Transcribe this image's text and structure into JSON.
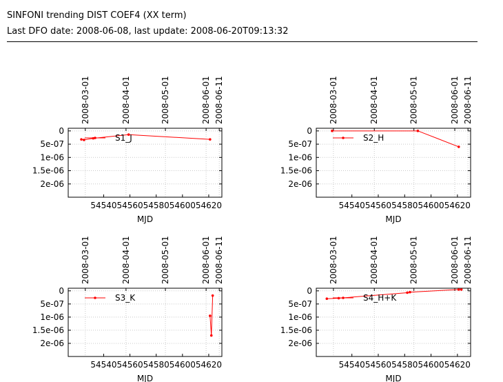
{
  "header": {
    "title": "SINFONI trending DIST COEF4 (XX term)",
    "subtitle": "Last DFO date: 2008-06-08, last update: 2008-06-20T09:13:32"
  },
  "colors": {
    "series": "#ff0000",
    "grid": "#c8c8c8",
    "axis": "#000000"
  },
  "chart_data": [
    {
      "type": "line",
      "series": [
        {
          "name": "S1_J",
          "x": [
            54523,
            54525,
            54532,
            54559,
            54621
          ],
          "y": [
            -3.2e-07,
            -3.4e-07,
            -2.8e-07,
            -1.4e-07,
            -3.2e-07
          ]
        }
      ],
      "xlabel": "MJD",
      "x_ticks": [
        {
          "value": 54540,
          "label": "54540"
        },
        {
          "value": 54560,
          "label": "54560"
        },
        {
          "value": 54580,
          "label": "54580"
        },
        {
          "value": 54600,
          "label": "54600"
        },
        {
          "value": 54620,
          "label": "54620"
        }
      ],
      "top_ticks": [
        {
          "value": 54526,
          "label": "2008-03-01"
        },
        {
          "value": 54557,
          "label": "2008-04-01"
        },
        {
          "value": 54587,
          "label": "2008-05-01"
        },
        {
          "value": 54618,
          "label": "2008-06-01"
        },
        {
          "value": 54628,
          "label": "2008-06-11"
        }
      ],
      "y_ticks": [
        {
          "value": 0,
          "label": "0"
        },
        {
          "value": -5e-07,
          "label": "5e-07"
        },
        {
          "value": -1e-06,
          "label": "1e-06"
        },
        {
          "value": -1.5e-06,
          "label": "1.5e-06"
        },
        {
          "value": -2e-06,
          "label": "2e-06"
        }
      ],
      "xlim": [
        54513,
        54630
      ],
      "ylim": [
        -2.5e-06,
        1e-07
      ],
      "grid": true,
      "legend": "top"
    },
    {
      "type": "line",
      "series": [
        {
          "name": "S2_H",
          "x": [
            54525,
            54590,
            54621
          ],
          "y": [
            0,
            0,
            -6e-07
          ]
        }
      ],
      "xlabel": "MJD",
      "x_ticks": [
        {
          "value": 54540,
          "label": "54540"
        },
        {
          "value": 54560,
          "label": "54560"
        },
        {
          "value": 54580,
          "label": "54580"
        },
        {
          "value": 54600,
          "label": "54600"
        },
        {
          "value": 54620,
          "label": "54620"
        }
      ],
      "top_ticks": [
        {
          "value": 54526,
          "label": "2008-03-01"
        },
        {
          "value": 54557,
          "label": "2008-04-01"
        },
        {
          "value": 54587,
          "label": "2008-05-01"
        },
        {
          "value": 54618,
          "label": "2008-06-01"
        },
        {
          "value": 54628,
          "label": "2008-06-11"
        }
      ],
      "y_ticks": [
        {
          "value": 0,
          "label": "0"
        },
        {
          "value": -5e-07,
          "label": "5e-07"
        },
        {
          "value": -1e-06,
          "label": "1e-06"
        },
        {
          "value": -1.5e-06,
          "label": "1.5e-06"
        },
        {
          "value": -2e-06,
          "label": "2e-06"
        }
      ],
      "xlim": [
        54513,
        54630
      ],
      "ylim": [
        -2.5e-06,
        1e-07
      ],
      "grid": true,
      "legend": "top"
    },
    {
      "type": "line",
      "series": [
        {
          "name": "S3_K",
          "x": [
            54621,
            54622,
            54623
          ],
          "y": [
            -9.5e-07,
            -1.7e-06,
            -1.8e-07
          ]
        }
      ],
      "xlabel": "MJD",
      "x_ticks": [
        {
          "value": 54540,
          "label": "54540"
        },
        {
          "value": 54560,
          "label": "54560"
        },
        {
          "value": 54580,
          "label": "54580"
        },
        {
          "value": 54600,
          "label": "54600"
        },
        {
          "value": 54620,
          "label": "54620"
        }
      ],
      "top_ticks": [
        {
          "value": 54526,
          "label": "2008-03-01"
        },
        {
          "value": 54557,
          "label": "2008-04-01"
        },
        {
          "value": 54587,
          "label": "2008-05-01"
        },
        {
          "value": 54618,
          "label": "2008-06-01"
        },
        {
          "value": 54628,
          "label": "2008-06-11"
        }
      ],
      "y_ticks": [
        {
          "value": 0,
          "label": "0"
        },
        {
          "value": -5e-07,
          "label": "5e-07"
        },
        {
          "value": -1e-06,
          "label": "1e-06"
        },
        {
          "value": -1.5e-06,
          "label": "1.5e-06"
        },
        {
          "value": -2e-06,
          "label": "2e-06"
        }
      ],
      "xlim": [
        54513,
        54630
      ],
      "ylim": [
        -2.5e-06,
        1e-07
      ],
      "grid": true,
      "legend": "top"
    },
    {
      "type": "line",
      "series": [
        {
          "name": "S4_H+K",
          "x": [
            54521,
            54530,
            54582,
            54584,
            54621,
            54623
          ],
          "y": [
            -3e-07,
            -2.8e-07,
            -7e-08,
            -5e-08,
            5e-08,
            5e-08
          ]
        }
      ],
      "xlabel": "MJD",
      "x_ticks": [
        {
          "value": 54540,
          "label": "54540"
        },
        {
          "value": 54560,
          "label": "54560"
        },
        {
          "value": 54580,
          "label": "54580"
        },
        {
          "value": 54600,
          "label": "54600"
        },
        {
          "value": 54620,
          "label": "54620"
        }
      ],
      "top_ticks": [
        {
          "value": 54526,
          "label": "2008-03-01"
        },
        {
          "value": 54557,
          "label": "2008-04-01"
        },
        {
          "value": 54587,
          "label": "2008-05-01"
        },
        {
          "value": 54618,
          "label": "2008-06-01"
        },
        {
          "value": 54628,
          "label": "2008-06-11"
        }
      ],
      "y_ticks": [
        {
          "value": 0,
          "label": "0"
        },
        {
          "value": -5e-07,
          "label": "5e-07"
        },
        {
          "value": -1e-06,
          "label": "1e-06"
        },
        {
          "value": -1.5e-06,
          "label": "1.5e-06"
        },
        {
          "value": -2e-06,
          "label": "2e-06"
        }
      ],
      "xlim": [
        54513,
        54630
      ],
      "ylim": [
        -2.5e-06,
        1e-07
      ],
      "grid": true,
      "legend": "top"
    }
  ]
}
